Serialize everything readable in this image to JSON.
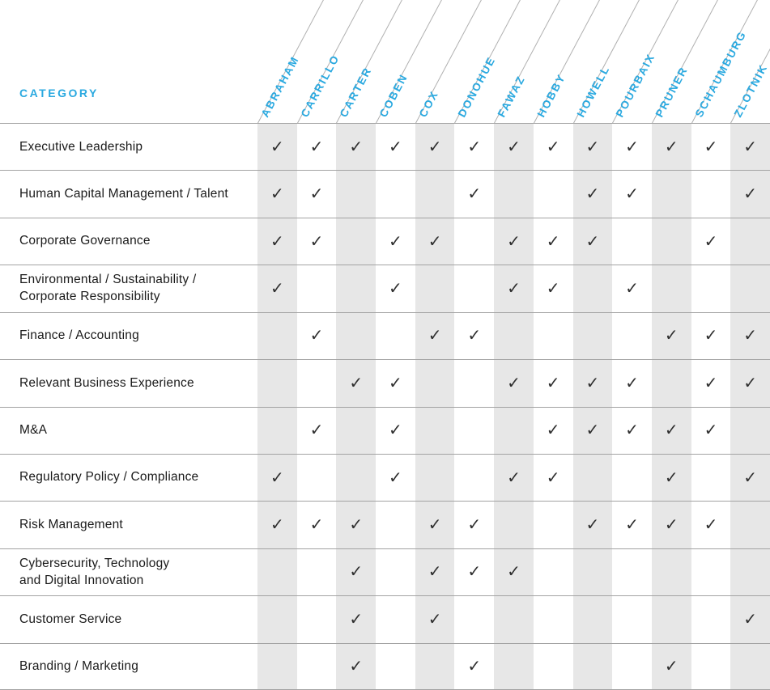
{
  "category_header": "CATEGORY",
  "check_symbol": "✓",
  "chart_data": {
    "type": "table",
    "title": "",
    "columns": [
      "ABRAHAM",
      "CARRILLO",
      "CARTER",
      "COBEN",
      "COX",
      "DONOHUE",
      "FAWAZ",
      "HOBBY",
      "HOWELL",
      "POURBAIX",
      "PRUNER",
      "SCHAUMBURG",
      "ZLOTNIK"
    ],
    "rows": [
      {
        "label": "Executive Leadership",
        "checks": [
          1,
          1,
          1,
          1,
          1,
          1,
          1,
          1,
          1,
          1,
          1,
          1,
          1
        ]
      },
      {
        "label": "Human Capital Management / Talent",
        "checks": [
          1,
          1,
          0,
          0,
          0,
          1,
          0,
          0,
          1,
          1,
          0,
          0,
          1
        ]
      },
      {
        "label": "Corporate Governance",
        "checks": [
          1,
          1,
          0,
          1,
          1,
          0,
          1,
          1,
          1,
          0,
          0,
          1,
          0
        ]
      },
      {
        "label": "Environmental / Sustainability /\nCorporate Responsibility",
        "checks": [
          1,
          0,
          0,
          1,
          0,
          0,
          1,
          1,
          0,
          1,
          0,
          0,
          0
        ]
      },
      {
        "label": "Finance / Accounting",
        "checks": [
          0,
          1,
          0,
          0,
          1,
          1,
          0,
          0,
          0,
          0,
          1,
          1,
          1
        ]
      },
      {
        "label": "Relevant Business Experience",
        "checks": [
          0,
          0,
          1,
          1,
          0,
          0,
          1,
          1,
          1,
          1,
          0,
          1,
          1
        ]
      },
      {
        "label": "M&A",
        "checks": [
          0,
          1,
          0,
          1,
          0,
          0,
          0,
          1,
          1,
          1,
          1,
          1,
          0
        ]
      },
      {
        "label": "Regulatory Policy / Compliance",
        "checks": [
          1,
          0,
          0,
          1,
          0,
          0,
          1,
          1,
          0,
          0,
          1,
          0,
          1
        ]
      },
      {
        "label": "Risk Management",
        "checks": [
          1,
          1,
          1,
          0,
          1,
          1,
          0,
          0,
          1,
          1,
          1,
          1,
          0
        ]
      },
      {
        "label": "Cybersecurity, Technology\nand Digital Innovation",
        "checks": [
          0,
          0,
          1,
          0,
          1,
          1,
          1,
          0,
          0,
          0,
          0,
          0,
          0
        ]
      },
      {
        "label": "Customer Service",
        "checks": [
          0,
          0,
          1,
          0,
          1,
          0,
          0,
          0,
          0,
          0,
          0,
          0,
          1
        ]
      },
      {
        "label": "Branding / Marketing",
        "checks": [
          0,
          0,
          1,
          0,
          0,
          1,
          0,
          0,
          0,
          0,
          1,
          0,
          0
        ]
      }
    ],
    "grid": true,
    "legend_position": "none"
  },
  "colors": {
    "accent": "#2AA9E0",
    "shade": "#E7E7E7",
    "row_line": "#A3A3A3",
    "diagonal_line": "#B0B0B0",
    "check": "#2F2F2F",
    "label_text": "#1A1A1A"
  }
}
